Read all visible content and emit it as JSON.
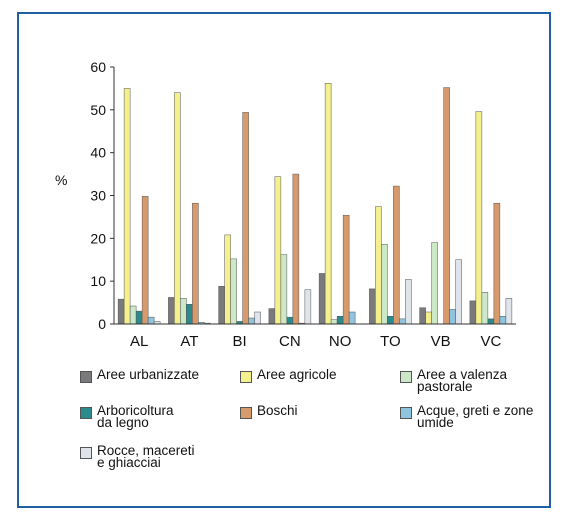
{
  "chart_data": {
    "type": "bar",
    "ylabel": "%",
    "ylim": [
      0,
      60
    ],
    "yticks": [
      0,
      10,
      20,
      30,
      40,
      50,
      60
    ],
    "grid": false,
    "legend_placement": "bottom",
    "categories": [
      "AL",
      "AT",
      "BI",
      "CN",
      "NO",
      "TO",
      "VB",
      "VC"
    ],
    "series": [
      {
        "name": "Aree urbanizzate",
        "color": "#7a7a7c",
        "values": [
          5.8,
          6.2,
          8.8,
          3.6,
          11.8,
          8.2,
          3.8,
          5.4
        ]
      },
      {
        "name": "Aree agricole",
        "color": "#f4f08e",
        "values": [
          55.0,
          54.0,
          20.8,
          34.4,
          56.2,
          27.4,
          2.8,
          49.6
        ]
      },
      {
        "name": "Aree a valenza\npastorale",
        "color": "#cde8c6",
        "values": [
          4.2,
          6.0,
          15.2,
          16.2,
          1.0,
          18.6,
          19.0,
          7.4
        ]
      },
      {
        "name": "Arboricoltura\nda legno",
        "color": "#2a8a8c",
        "values": [
          3.0,
          4.6,
          0.6,
          1.6,
          1.8,
          1.8,
          0.0,
          1.2
        ]
      },
      {
        "name": "Boschi",
        "color": "#d79a6c",
        "values": [
          29.8,
          28.2,
          49.4,
          35.0,
          25.4,
          32.2,
          55.2,
          28.2
        ]
      },
      {
        "name": "Acque, greti e zone\numide",
        "color": "#8ec4e0",
        "values": [
          1.6,
          0.4,
          1.4,
          0.2,
          2.8,
          1.2,
          3.4,
          1.8
        ]
      },
      {
        "name": "Rocce, macereti\ne ghiacciai",
        "color": "#dfe3ea",
        "values": [
          0.6,
          0.2,
          2.8,
          8.0,
          0.0,
          10.4,
          15.0,
          6.0
        ]
      }
    ]
  }
}
